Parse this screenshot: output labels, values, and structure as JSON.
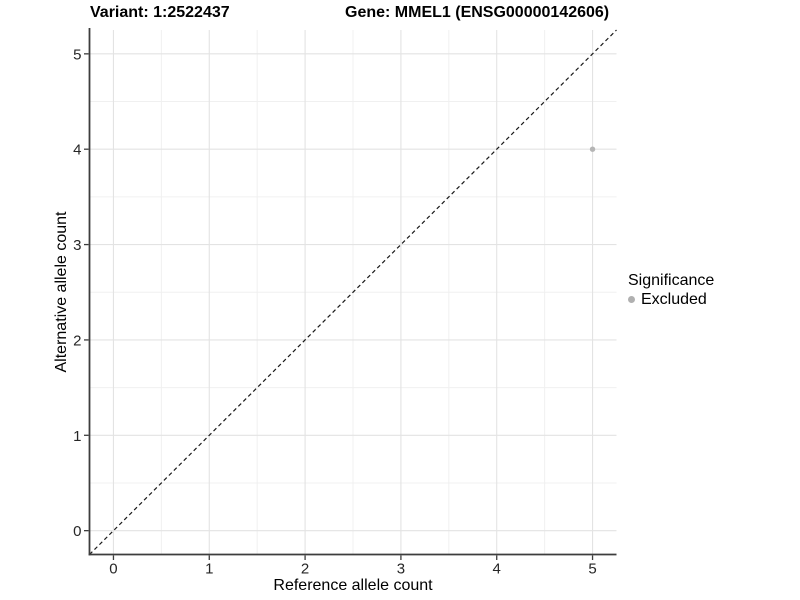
{
  "chart_data": {
    "type": "scatter",
    "titles": {
      "variant": "Variant: 1:2522437",
      "gene": "Gene: MMEL1 (ENSG00000142606)"
    },
    "xlabel": "Reference allele count",
    "ylabel": "Alternative allele count",
    "xlim": [
      -0.25,
      5.25
    ],
    "ylim": [
      -0.25,
      5.25
    ],
    "xticks": [
      0,
      1,
      2,
      3,
      4,
      5
    ],
    "yticks": [
      0,
      1,
      2,
      3,
      4,
      5
    ],
    "grid": {
      "major": true,
      "minor": true
    },
    "reference_line": {
      "kind": "identity",
      "style": "dashed",
      "from": [
        -0.25,
        -0.25
      ],
      "to": [
        5.25,
        5.25
      ]
    },
    "series": [
      {
        "name": "Excluded",
        "color": "#b5b5b5",
        "marker_radius": 2.7,
        "points": [
          [
            5,
            4
          ]
        ]
      }
    ],
    "legend": {
      "title": "Significance",
      "position": "right",
      "items": [
        {
          "label": "Excluded",
          "color": "#b0b0b0"
        }
      ]
    }
  },
  "colors": {
    "background": "#ffffff",
    "grid_major": "#e3e3e3",
    "grid_minor": "#f0f0f0",
    "axis_line": "#3d3d3d",
    "tick_label": "#262626",
    "ref_line": "#1a1a1a",
    "title": "#000000"
  }
}
